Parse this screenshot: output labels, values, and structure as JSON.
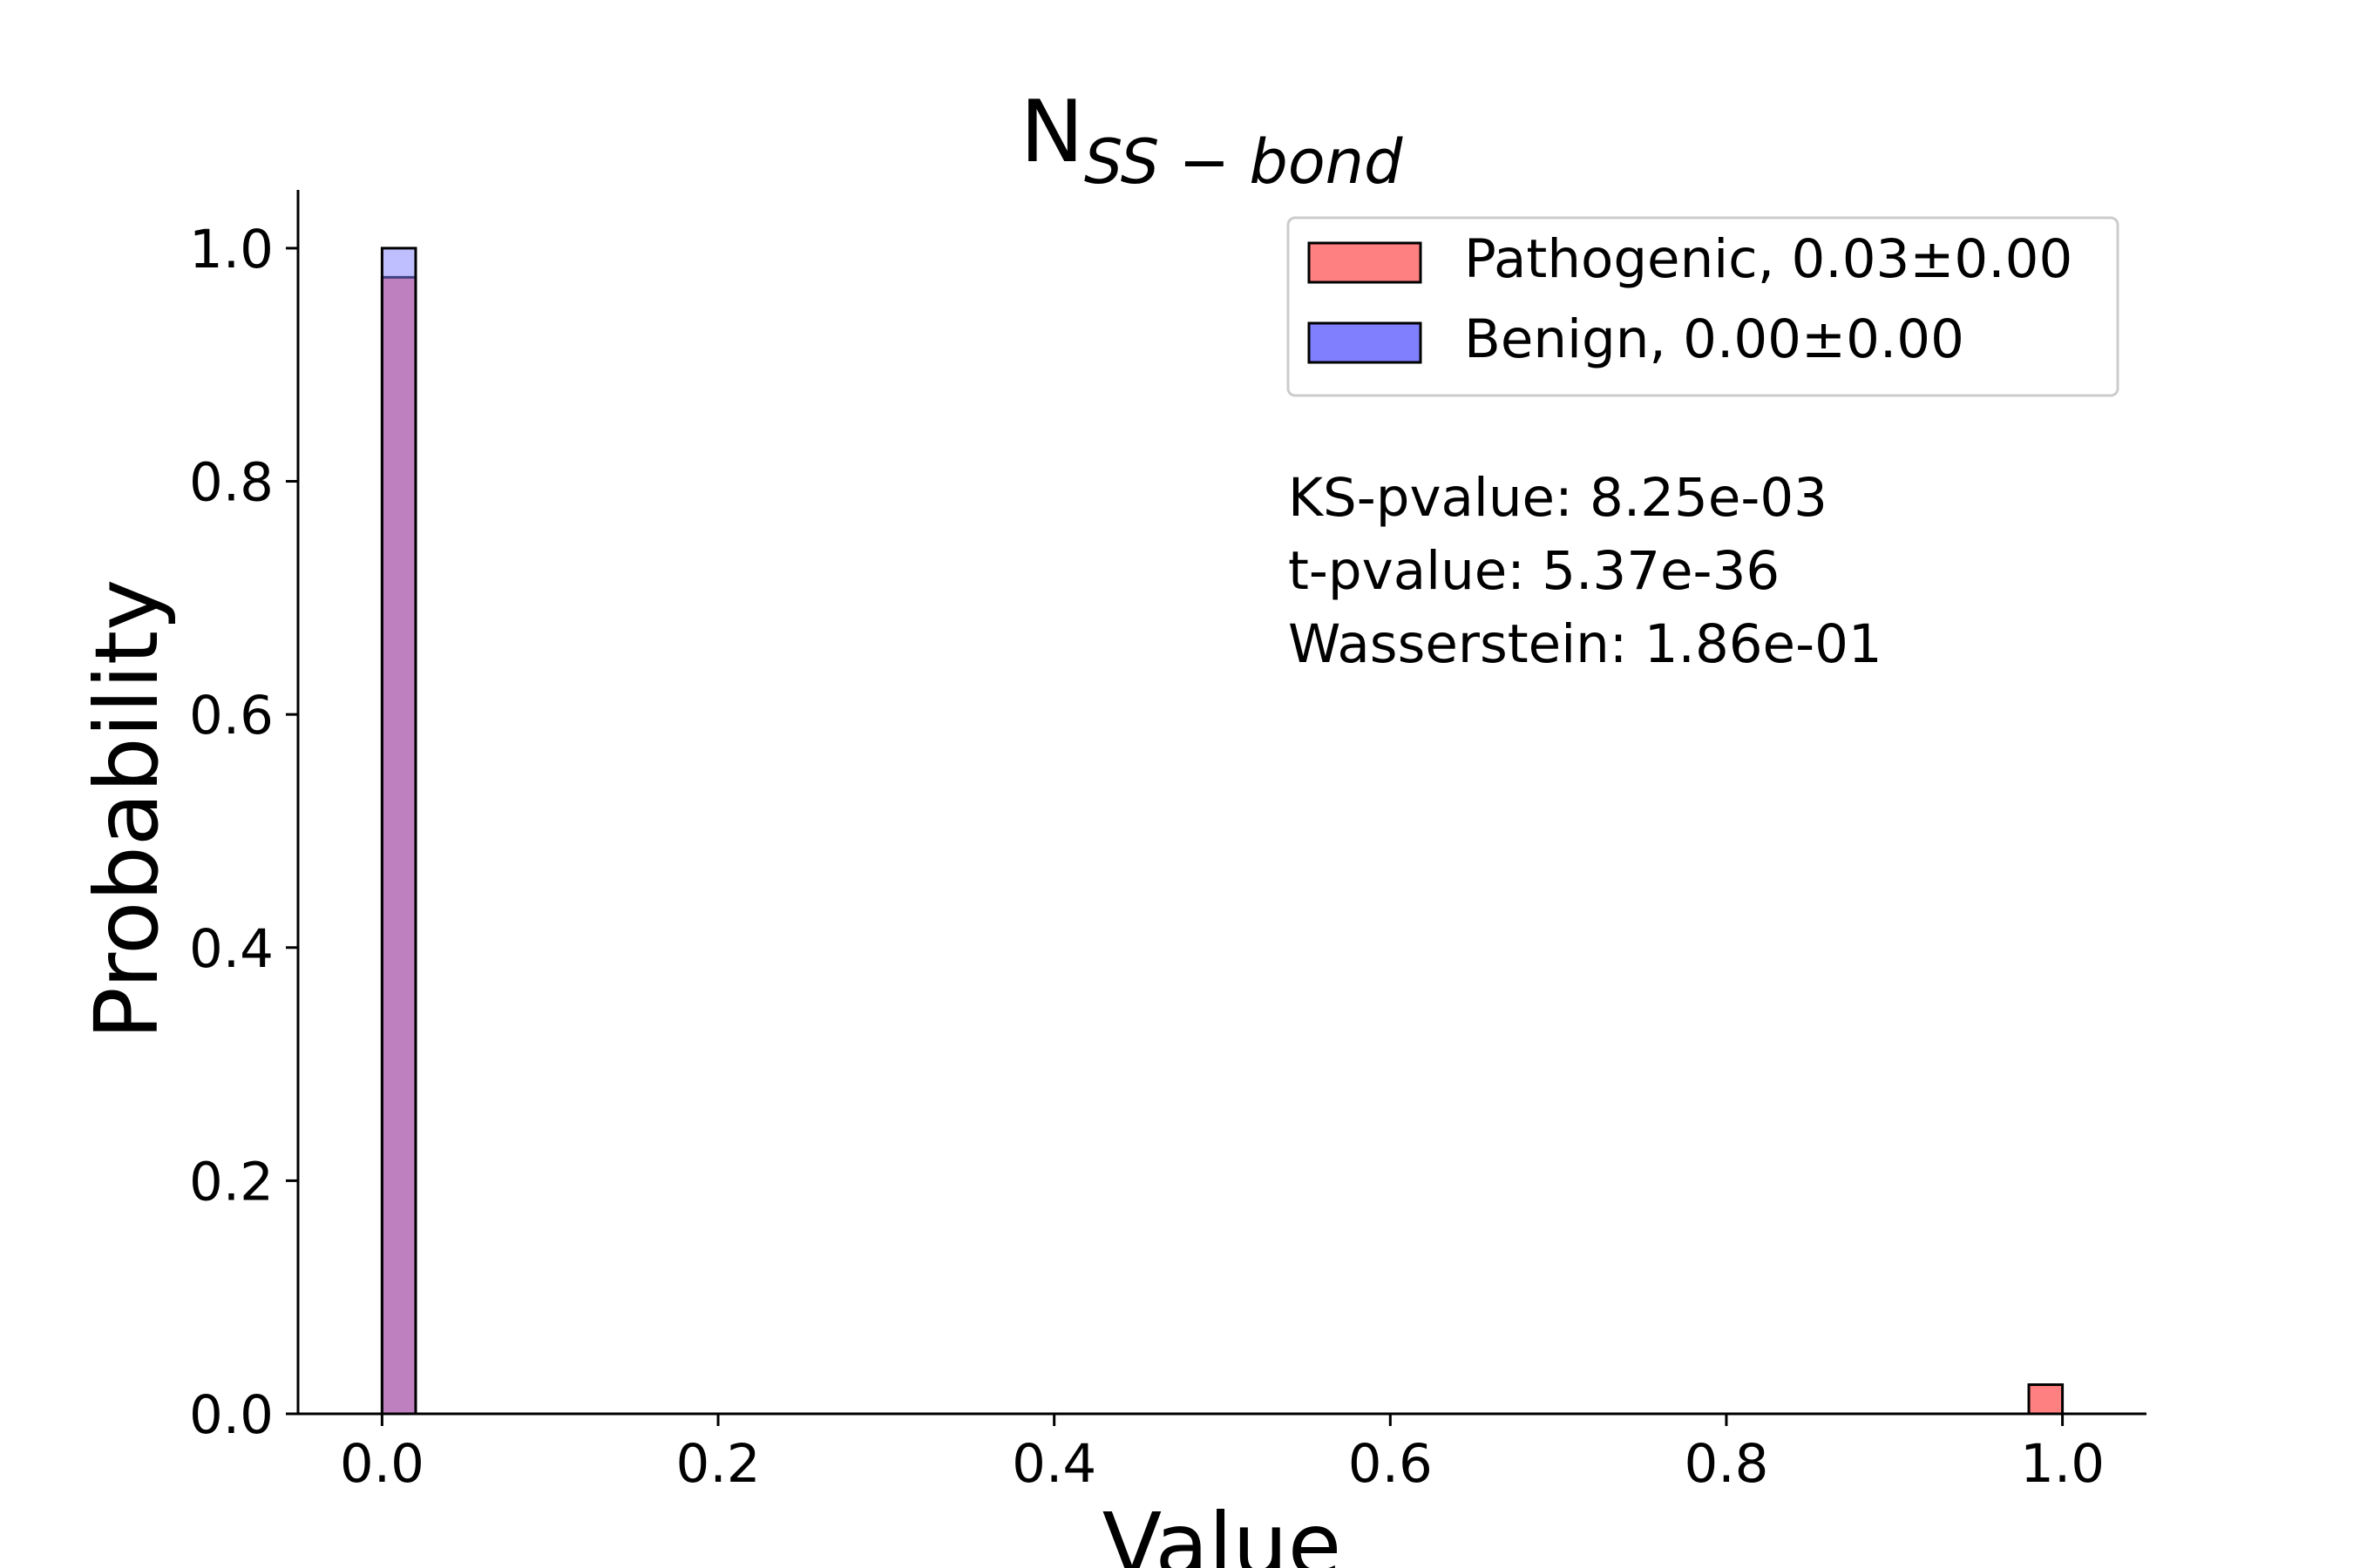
{
  "chart_data": {
    "type": "bar",
    "title": "N",
    "title_subscript": "SS − bond",
    "xlabel": "Value",
    "ylabel": "Probability",
    "xlim": [
      -0.05,
      1.05
    ],
    "ylim": [
      0.0,
      1.05
    ],
    "xticks": [
      0.0,
      0.2,
      0.4,
      0.6,
      0.8,
      1.0
    ],
    "xtick_labels": [
      "0.0",
      "0.2",
      "0.4",
      "0.6",
      "0.8",
      "1.0"
    ],
    "yticks": [
      0.0,
      0.2,
      0.4,
      0.6,
      0.8,
      1.0
    ],
    "ytick_labels": [
      "0.0",
      "0.2",
      "0.4",
      "0.6",
      "0.8",
      "1.0"
    ],
    "bin_width": 0.02,
    "grid": false,
    "legend_position": "top-right",
    "series": [
      {
        "name": "Pathogenic, 0.03±0.00",
        "color": "#ff8080",
        "bins": [
          {
            "x0": 0.0,
            "x1": 0.02,
            "value": 0.975
          },
          {
            "x0": 0.98,
            "x1": 1.0,
            "value": 0.025
          }
        ]
      },
      {
        "name": "Benign, 0.00±0.00",
        "color": "#8080ff",
        "bins": [
          {
            "x0": 0.0,
            "x1": 0.02,
            "value": 1.0
          }
        ]
      }
    ],
    "overlap_color": "#7b3dbf",
    "annotations": [
      "KS-pvalue: 8.25e-03",
      "t-pvalue: 5.37e-36",
      "Wasserstein: 1.86e-01"
    ]
  }
}
